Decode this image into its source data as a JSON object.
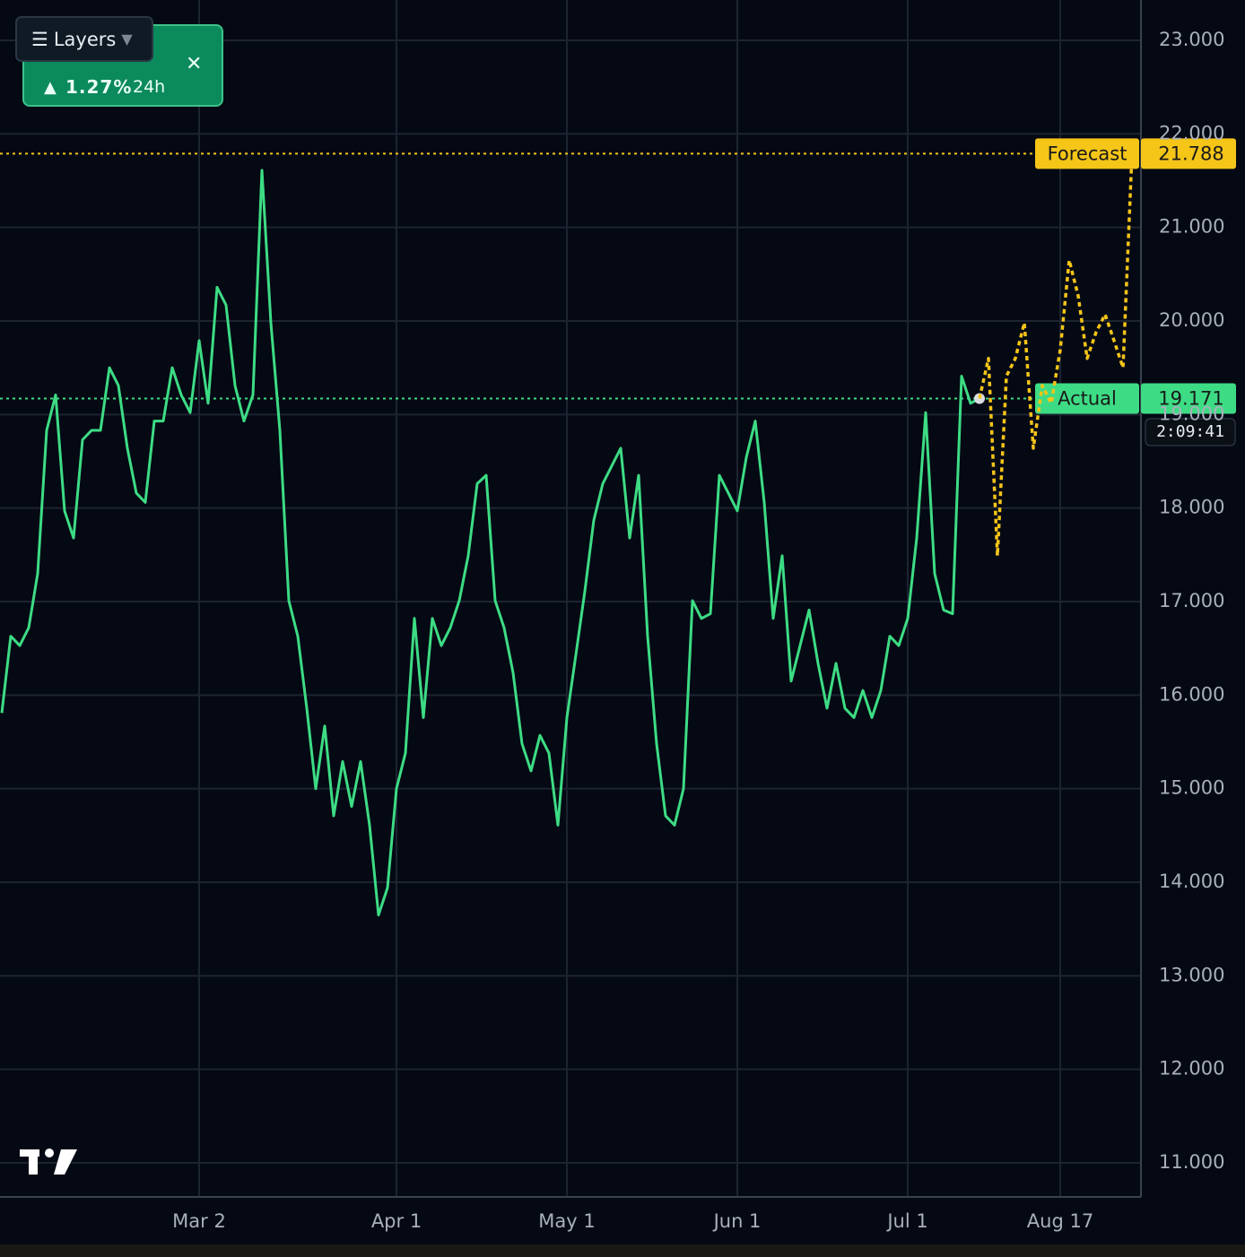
{
  "chart_data": {
    "type": "line",
    "categories": [
      null,
      null,
      null,
      null,
      null,
      null,
      null,
      null,
      null,
      null,
      null,
      null,
      null,
      null,
      null,
      null,
      null,
      null,
      null,
      null,
      null,
      null,
      "Mar 2",
      null,
      null,
      null,
      null,
      null,
      null,
      null,
      null,
      null,
      null,
      null,
      null,
      null,
      null,
      null,
      null,
      null,
      null,
      null,
      null,
      null,
      "Apr 1",
      null,
      null,
      null,
      null,
      null,
      null,
      null,
      null,
      null,
      null,
      null,
      null,
      null,
      null,
      null,
      null,
      null,
      null,
      "May 1",
      null,
      null,
      null,
      null,
      null,
      null,
      null,
      null,
      null,
      null,
      null,
      null,
      null,
      null,
      null,
      null,
      null,
      null,
      "Jun 1",
      null,
      null,
      null,
      null,
      null,
      null,
      null,
      null,
      null,
      null,
      null,
      null,
      null,
      null,
      null,
      null,
      null,
      null,
      "Jul 1",
      null,
      null,
      null,
      null,
      null,
      null,
      null,
      null,
      null,
      null,
      null,
      null,
      null,
      null,
      null,
      null,
      "Aug 17",
      null,
      null,
      null,
      null,
      null,
      null,
      null,
      null,
      null
    ],
    "series": [
      {
        "name": "Actual",
        "color": "#3ddc84",
        "values": [
          15.81,
          16.63,
          16.53,
          16.72,
          17.3,
          18.83,
          19.21,
          17.97,
          17.68,
          18.73,
          18.83,
          18.83,
          19.5,
          19.31,
          18.64,
          18.16,
          18.06,
          18.93,
          18.93,
          19.5,
          19.21,
          19.02,
          19.79,
          19.12,
          20.36,
          20.17,
          19.31,
          18.93,
          19.21,
          21.61,
          19.98,
          18.83,
          17.01,
          16.63,
          15.86,
          15.0,
          15.67,
          14.71,
          15.29,
          14.81,
          15.29,
          14.61,
          13.65,
          13.94,
          15.0,
          15.38,
          16.82,
          15.76,
          16.82,
          16.53,
          16.72,
          17.01,
          17.49,
          18.26,
          18.35,
          17.01,
          16.72,
          16.24,
          15.48,
          15.19,
          15.57,
          15.38,
          14.61,
          15.76,
          16.43,
          17.11,
          17.87,
          18.26,
          18.45,
          18.64,
          17.68,
          18.35,
          16.63,
          15.48,
          14.71,
          14.61,
          15.0,
          17.01,
          16.82,
          16.87,
          18.35,
          18.16,
          17.97,
          18.54,
          18.93,
          18.06,
          16.82,
          17.49,
          16.15,
          16.53,
          16.91,
          16.34,
          15.86,
          16.34,
          15.86,
          15.76,
          16.05,
          15.76,
          16.05,
          16.63,
          16.53,
          16.82,
          17.68,
          19.02,
          17.3,
          16.91,
          16.87,
          19.41,
          19.12,
          19.171,
          null,
          null,
          null,
          null,
          null,
          null,
          null,
          null,
          null,
          null,
          null,
          null,
          null,
          null,
          null,
          null,
          null,
          null
        ]
      },
      {
        "name": "Forecast",
        "color": "#f5c518",
        "dashed": true,
        "values": [
          null,
          null,
          null,
          null,
          null,
          null,
          null,
          null,
          null,
          null,
          null,
          null,
          null,
          null,
          null,
          null,
          null,
          null,
          null,
          null,
          null,
          null,
          null,
          null,
          null,
          null,
          null,
          null,
          null,
          null,
          null,
          null,
          null,
          null,
          null,
          null,
          null,
          null,
          null,
          null,
          null,
          null,
          null,
          null,
          null,
          null,
          null,
          null,
          null,
          null,
          null,
          null,
          null,
          null,
          null,
          null,
          null,
          null,
          null,
          null,
          null,
          null,
          null,
          null,
          null,
          null,
          null,
          null,
          null,
          null,
          null,
          null,
          null,
          null,
          null,
          null,
          null,
          null,
          null,
          null,
          null,
          null,
          null,
          null,
          null,
          null,
          null,
          null,
          null,
          null,
          null,
          null,
          null,
          null,
          null,
          null,
          null,
          null,
          null,
          null,
          null,
          null,
          null,
          null,
          null,
          null,
          null,
          null,
          null,
          19.171,
          19.6,
          17.49,
          19.41,
          19.6,
          19.98,
          18.64,
          19.31,
          19.12,
          19.69,
          20.65,
          20.27,
          19.6,
          19.88,
          20.07,
          19.79,
          19.5,
          21.788,
          null
        ]
      }
    ],
    "ylim": [
      10.636,
      23.431
    ],
    "yticks": [
      {
        "value": 11,
        "label": "11.000"
      },
      {
        "value": 12,
        "label": "12.000"
      },
      {
        "value": 13,
        "label": "13.000"
      },
      {
        "value": 14,
        "label": "14.000"
      },
      {
        "value": 15,
        "label": "15.000"
      },
      {
        "value": 16,
        "label": "16.000"
      },
      {
        "value": 17,
        "label": "17.000"
      },
      {
        "value": 18,
        "label": "18.000"
      },
      {
        "value": 19,
        "label": "19.000"
      },
      {
        "value": 20,
        "label": "20.000"
      },
      {
        "value": 21,
        "label": "21.000"
      },
      {
        "value": 22,
        "label": "22.000"
      },
      {
        "value": 23,
        "label": "23.000"
      }
    ],
    "grid": true
  },
  "ui": {
    "layers": "Layers",
    "change": "1.27%",
    "period": "24h",
    "countdown": "2:09:41"
  }
}
